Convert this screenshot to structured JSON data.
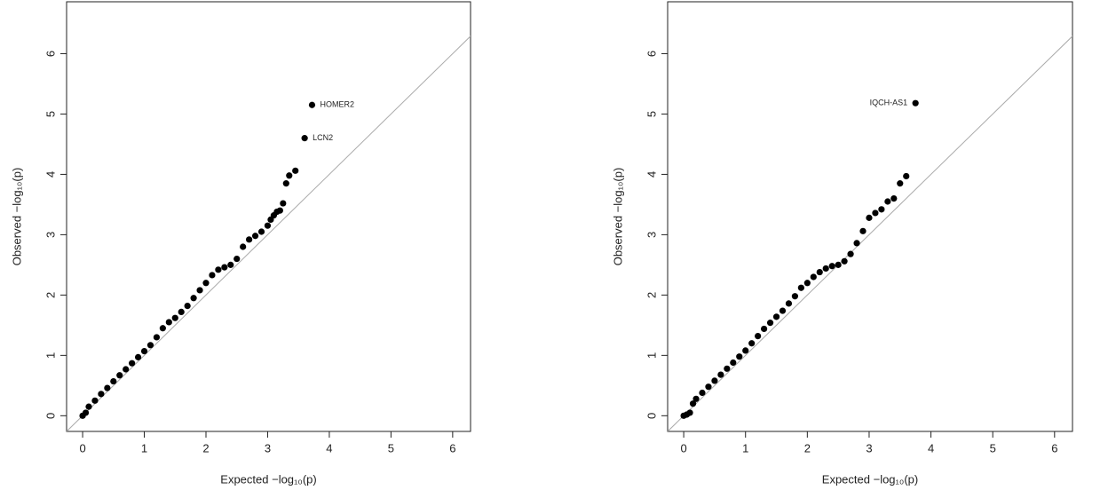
{
  "chart_data": [
    {
      "type": "scatter",
      "x_label": "Expected −log₁₀(p)",
      "y_label": "Observed −log₁₀(p)",
      "x": [
        0,
        0.05,
        0.1,
        0.2,
        0.3,
        0.4,
        0.5,
        0.6,
        0.7,
        0.8,
        0.9,
        1.0,
        1.1,
        1.2,
        1.3,
        1.4,
        1.5,
        1.6,
        1.7,
        1.8,
        1.9,
        2.0,
        2.1,
        2.2,
        2.3,
        2.4,
        2.5,
        2.6,
        2.7,
        2.8,
        2.9,
        3.0,
        3.05,
        3.1,
        3.15,
        3.2,
        3.25,
        3.3,
        3.35,
        3.45,
        3.6,
        3.72
      ],
      "values": [
        0,
        0.05,
        0.15,
        0.25,
        0.36,
        0.46,
        0.57,
        0.67,
        0.77,
        0.87,
        0.97,
        1.07,
        1.17,
        1.3,
        1.45,
        1.55,
        1.62,
        1.72,
        1.82,
        1.95,
        2.08,
        2.2,
        2.33,
        2.42,
        2.46,
        2.5,
        2.6,
        2.8,
        2.92,
        2.98,
        3.05,
        3.15,
        3.25,
        3.32,
        3.38,
        3.4,
        3.52,
        3.85,
        3.98,
        4.06,
        4.6,
        5.15
      ],
      "labels": [
        null,
        null,
        null,
        null,
        null,
        null,
        null,
        null,
        null,
        null,
        null,
        null,
        null,
        null,
        null,
        null,
        null,
        null,
        null,
        null,
        null,
        null,
        null,
        null,
        null,
        null,
        null,
        null,
        null,
        null,
        null,
        null,
        null,
        null,
        null,
        null,
        null,
        null,
        null,
        null,
        "LCN2",
        "HOMER2"
      ],
      "label_side": "right",
      "color": "#000000",
      "diagonal": true,
      "xlim": [
        -0.26,
        6.29
      ],
      "ylim": [
        -0.26,
        6.86
      ],
      "xticks": [
        0,
        1,
        2,
        3,
        4,
        5,
        6
      ],
      "yticks": [
        0,
        1,
        2,
        3,
        4,
        5,
        6
      ]
    },
    {
      "type": "scatter",
      "x_label": "Expected −log₁₀(p)",
      "y_label": "Observed −log₁₀(p)",
      "x": [
        0,
        0.05,
        0.1,
        0.15,
        0.2,
        0.3,
        0.4,
        0.5,
        0.6,
        0.7,
        0.8,
        0.9,
        1.0,
        1.1,
        1.2,
        1.3,
        1.4,
        1.5,
        1.6,
        1.7,
        1.8,
        1.9,
        2.0,
        2.1,
        2.2,
        2.3,
        2.4,
        2.5,
        2.6,
        2.7,
        2.8,
        2.9,
        3.0,
        3.1,
        3.2,
        3.3,
        3.4,
        3.5,
        3.6,
        3.75
      ],
      "values": [
        0,
        0.02,
        0.05,
        0.2,
        0.28,
        0.38,
        0.48,
        0.58,
        0.68,
        0.78,
        0.88,
        0.98,
        1.08,
        1.2,
        1.32,
        1.44,
        1.54,
        1.64,
        1.74,
        1.86,
        1.98,
        2.12,
        2.2,
        2.3,
        2.38,
        2.44,
        2.48,
        2.5,
        2.56,
        2.68,
        2.86,
        3.06,
        3.28,
        3.36,
        3.42,
        3.55,
        3.6,
        3.85,
        3.97,
        5.18
      ],
      "labels": [
        null,
        null,
        null,
        null,
        null,
        null,
        null,
        null,
        null,
        null,
        null,
        null,
        null,
        null,
        null,
        null,
        null,
        null,
        null,
        null,
        null,
        null,
        null,
        null,
        null,
        null,
        null,
        null,
        null,
        null,
        null,
        null,
        null,
        null,
        null,
        null,
        null,
        null,
        null,
        "IQCH-AS1"
      ],
      "label_side": "left",
      "color": "#000000",
      "diagonal": true,
      "xlim": [
        -0.26,
        6.29
      ],
      "ylim": [
        -0.26,
        6.86
      ],
      "xticks": [
        0,
        1,
        2,
        3,
        4,
        5,
        6
      ],
      "yticks": [
        0,
        1,
        2,
        3,
        4,
        5,
        6
      ]
    }
  ]
}
